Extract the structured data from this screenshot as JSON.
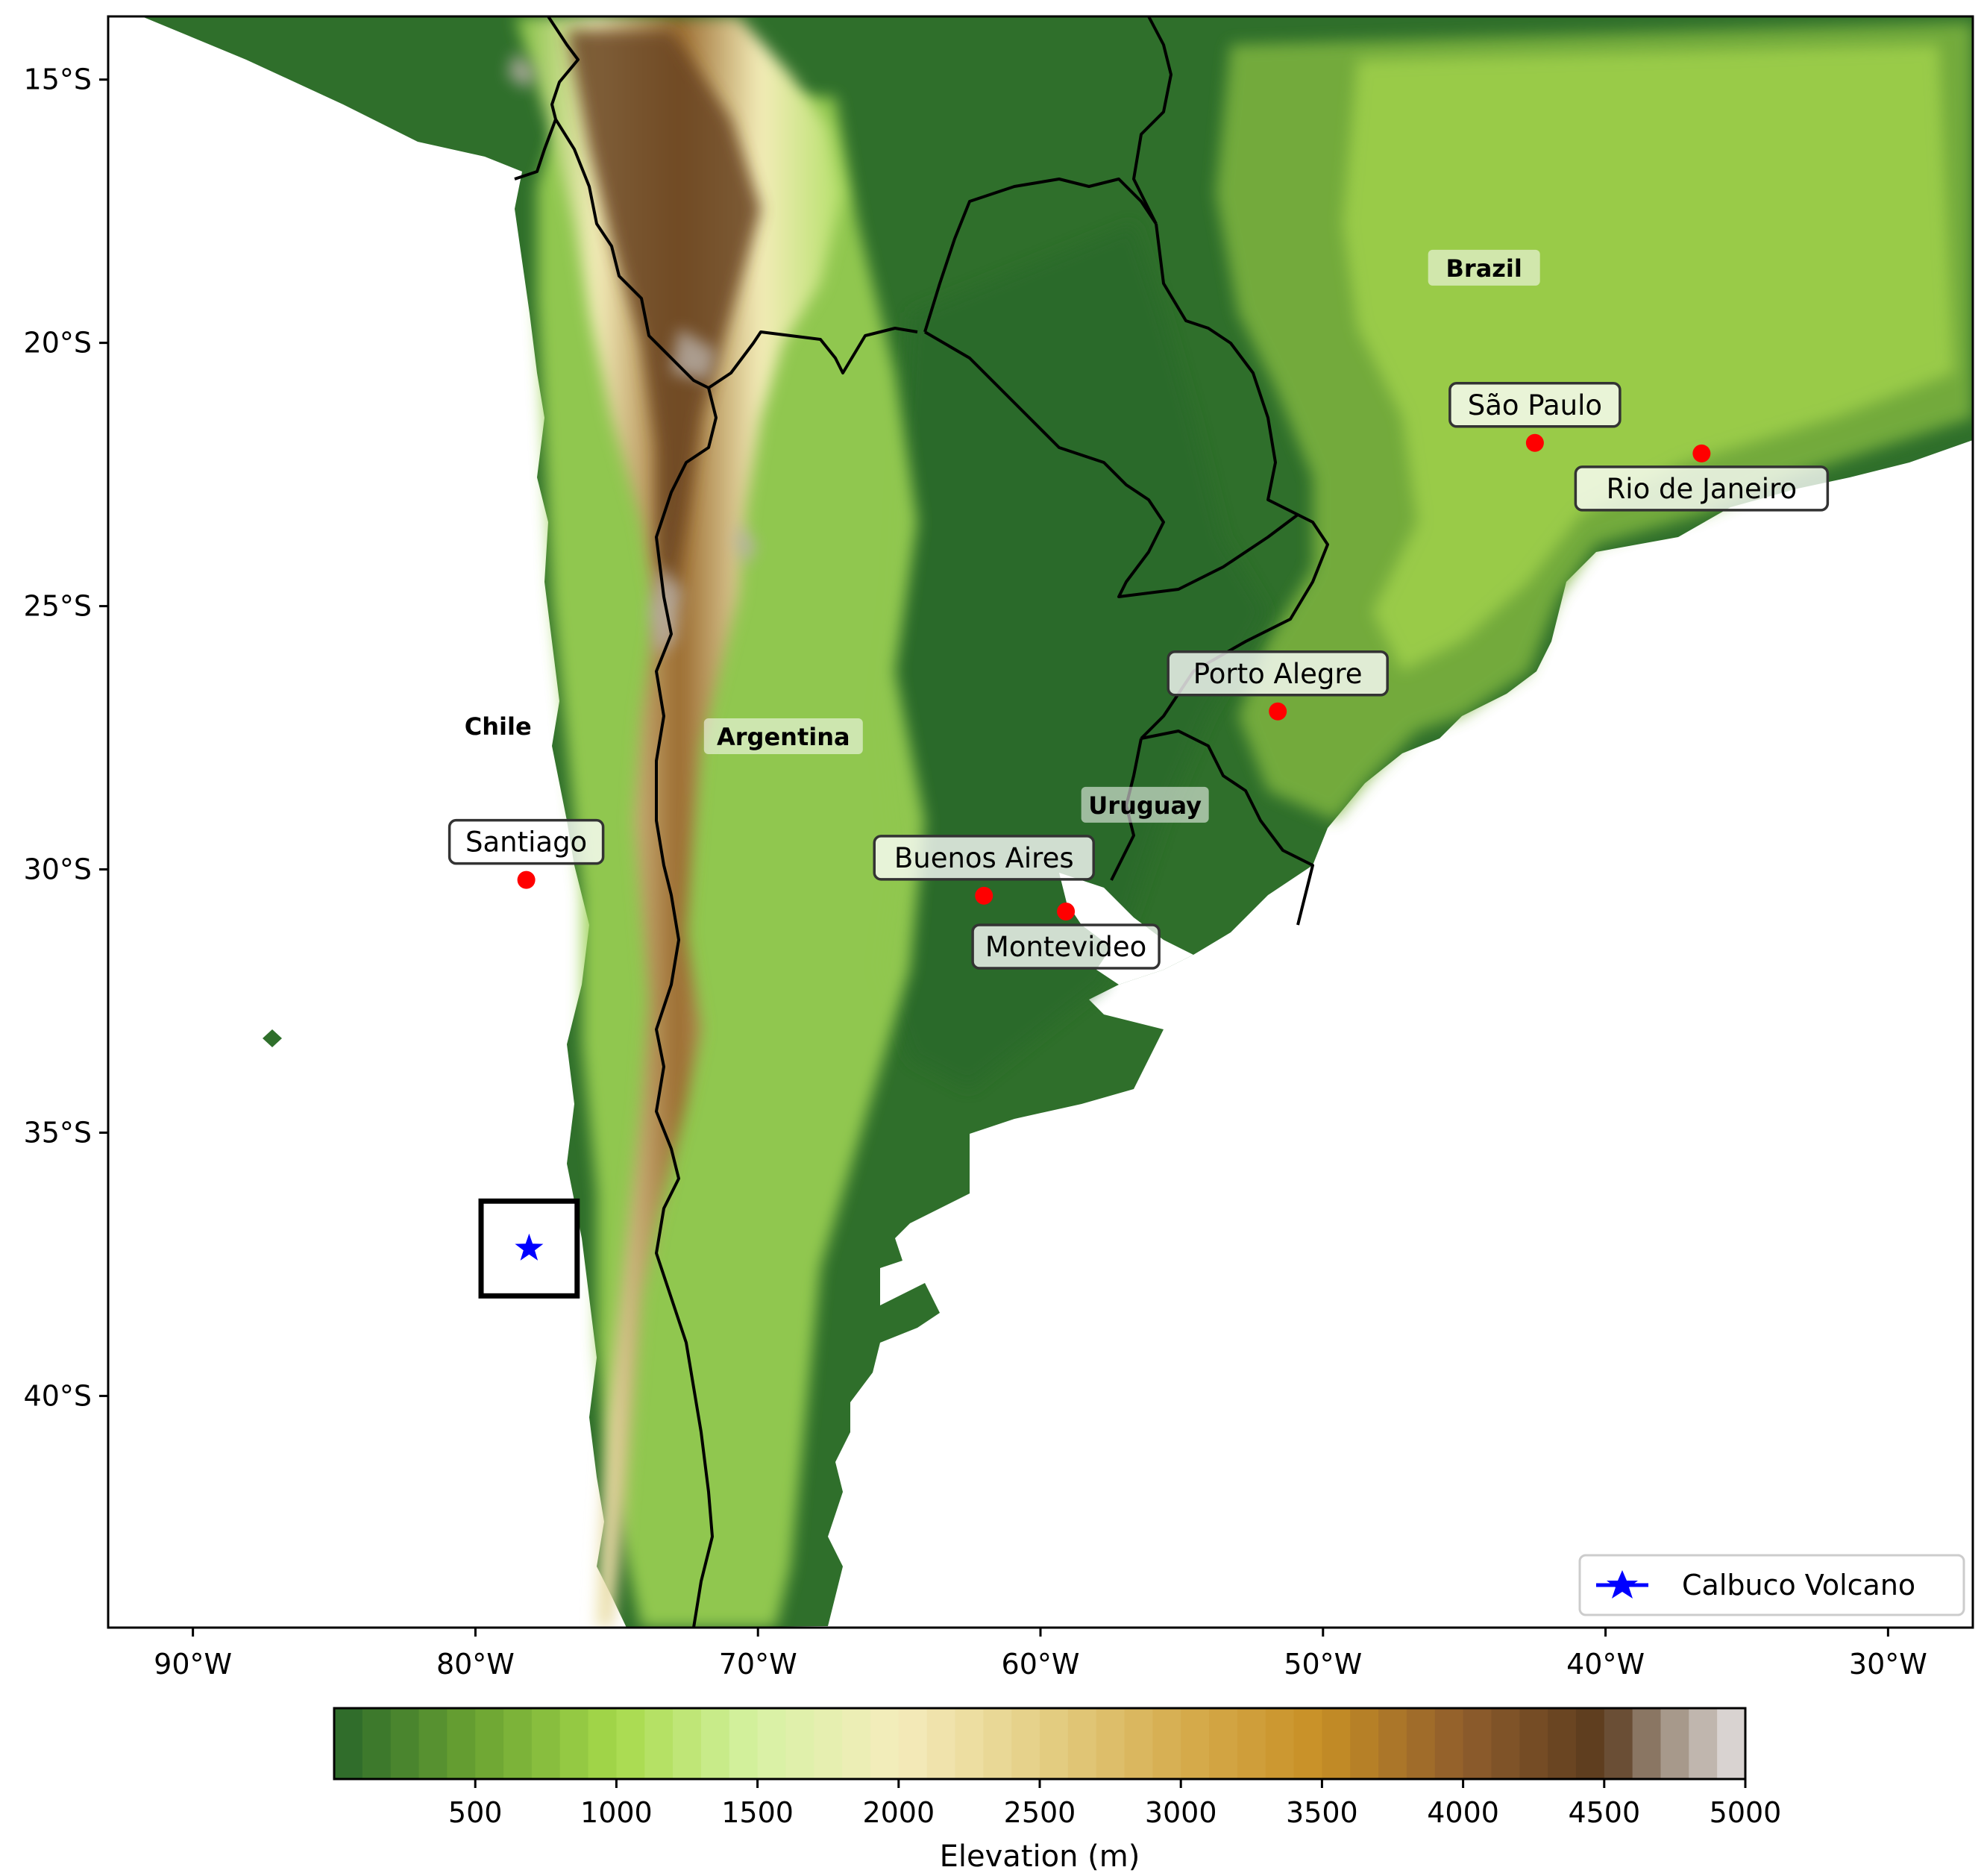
{
  "map": {
    "lon_range": [
      -93,
      -27
    ],
    "lat_range": [
      -44.4,
      -13.8
    ],
    "lon_ticks": [
      {
        "value": -90,
        "label": "90°W"
      },
      {
        "value": -80,
        "label": "80°W"
      },
      {
        "value": -70,
        "label": "70°W"
      },
      {
        "value": -60,
        "label": "60°W"
      },
      {
        "value": -50,
        "label": "50°W"
      },
      {
        "value": -40,
        "label": "40°W"
      },
      {
        "value": -30,
        "label": "30°W"
      }
    ],
    "lat_ticks": [
      {
        "value": -15,
        "label": "15°S"
      },
      {
        "value": -20,
        "label": "20°S"
      },
      {
        "value": -25,
        "label": "25°S"
      },
      {
        "value": -30,
        "label": "30°S"
      },
      {
        "value": -35,
        "label": "35°S"
      },
      {
        "value": -40,
        "label": "40°S"
      }
    ],
    "countries": [
      {
        "name": "Brazil",
        "lon": -44.3,
        "lat": -18.6
      },
      {
        "name": "Chile",
        "lon": -79.2,
        "lat": -27.3
      },
      {
        "name": "Argentina",
        "lon": -69.1,
        "lat": -27.5
      },
      {
        "name": "Uruguay",
        "lon": -56.3,
        "lat": -28.8
      }
    ],
    "cities": [
      {
        "name": "Santiago",
        "lon": -78.2,
        "lat": -30.2,
        "label_pos": "above"
      },
      {
        "name": "Buenos Aires",
        "lon": -62.0,
        "lat": -30.5,
        "label_pos": "above"
      },
      {
        "name": "Montevideo",
        "lon": -59.1,
        "lat": -30.8,
        "label_pos": "below"
      },
      {
        "name": "Porto Alegre",
        "lon": -51.6,
        "lat": -27.0,
        "label_pos": "above"
      },
      {
        "name": "São Paulo",
        "lon": -42.5,
        "lat": -21.9,
        "label_pos": "above"
      },
      {
        "name": "Rio de Janeiro",
        "lon": -36.6,
        "lat": -22.1,
        "label_pos": "below"
      }
    ],
    "volcano": {
      "name": "Calbuco Volcano",
      "lon": -78.1,
      "lat": -37.2
    },
    "study_box": {
      "lon_min": -79.8,
      "lon_max": -76.4,
      "lat_min": -38.1,
      "lat_max": -36.3
    },
    "legend_label": "Calbuco Volcano",
    "colors": {
      "city": "#ff0000",
      "volcano": "#0000ff",
      "border": "#000000",
      "ocean": "#ffffff"
    }
  },
  "colorbar": {
    "label": "Elevation (m)",
    "min": 0,
    "max": 5000,
    "tick_values": [
      500,
      1000,
      1500,
      2000,
      2500,
      3000,
      3500,
      4000,
      4500,
      5000
    ],
    "tick_labels": [
      "500",
      "1000",
      "1500",
      "2000",
      "2500",
      "3000",
      "3500",
      "4000",
      "4500",
      "5000"
    ],
    "stops": [
      {
        "v": 0,
        "c": "#2a672a"
      },
      {
        "v": 500,
        "c": "#6aa332"
      },
      {
        "v": 1000,
        "c": "#a6d94a"
      },
      {
        "v": 1500,
        "c": "#d7f2a4"
      },
      {
        "v": 2000,
        "c": "#f5ecbc"
      },
      {
        "v": 2500,
        "c": "#e4cf85"
      },
      {
        "v": 3000,
        "c": "#d6ad4e"
      },
      {
        "v": 3500,
        "c": "#c78f25"
      },
      {
        "v": 4000,
        "c": "#8f5d2c"
      },
      {
        "v": 4500,
        "c": "#5a3a1e"
      },
      {
        "v": 4700,
        "c": "#9a8a7a"
      },
      {
        "v": 5000,
        "c": "#e6e2e2"
      }
    ]
  }
}
